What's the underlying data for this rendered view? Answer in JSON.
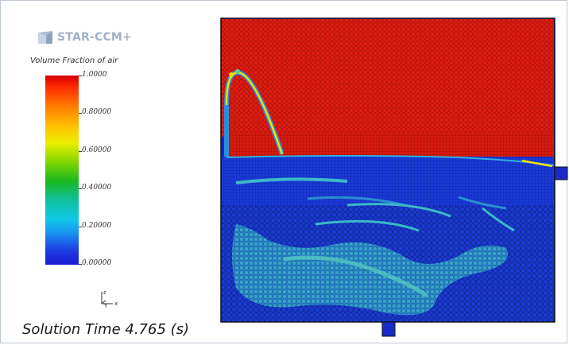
{
  "logo": {
    "text": "STAR-CCM+"
  },
  "legend": {
    "title": "Volume Fraction of air",
    "ticks": [
      "1.0000",
      "0.80000",
      "0.60000",
      "0.40000",
      "0.20000",
      "0.00000"
    ]
  },
  "axes": {
    "z": "z",
    "y": "Y",
    "x": "x"
  },
  "solution_time": "Solution Time 4.765 (s)",
  "colors": {
    "air": "#e01c10",
    "water": "#1428c8",
    "interface": "#f0e000"
  }
}
